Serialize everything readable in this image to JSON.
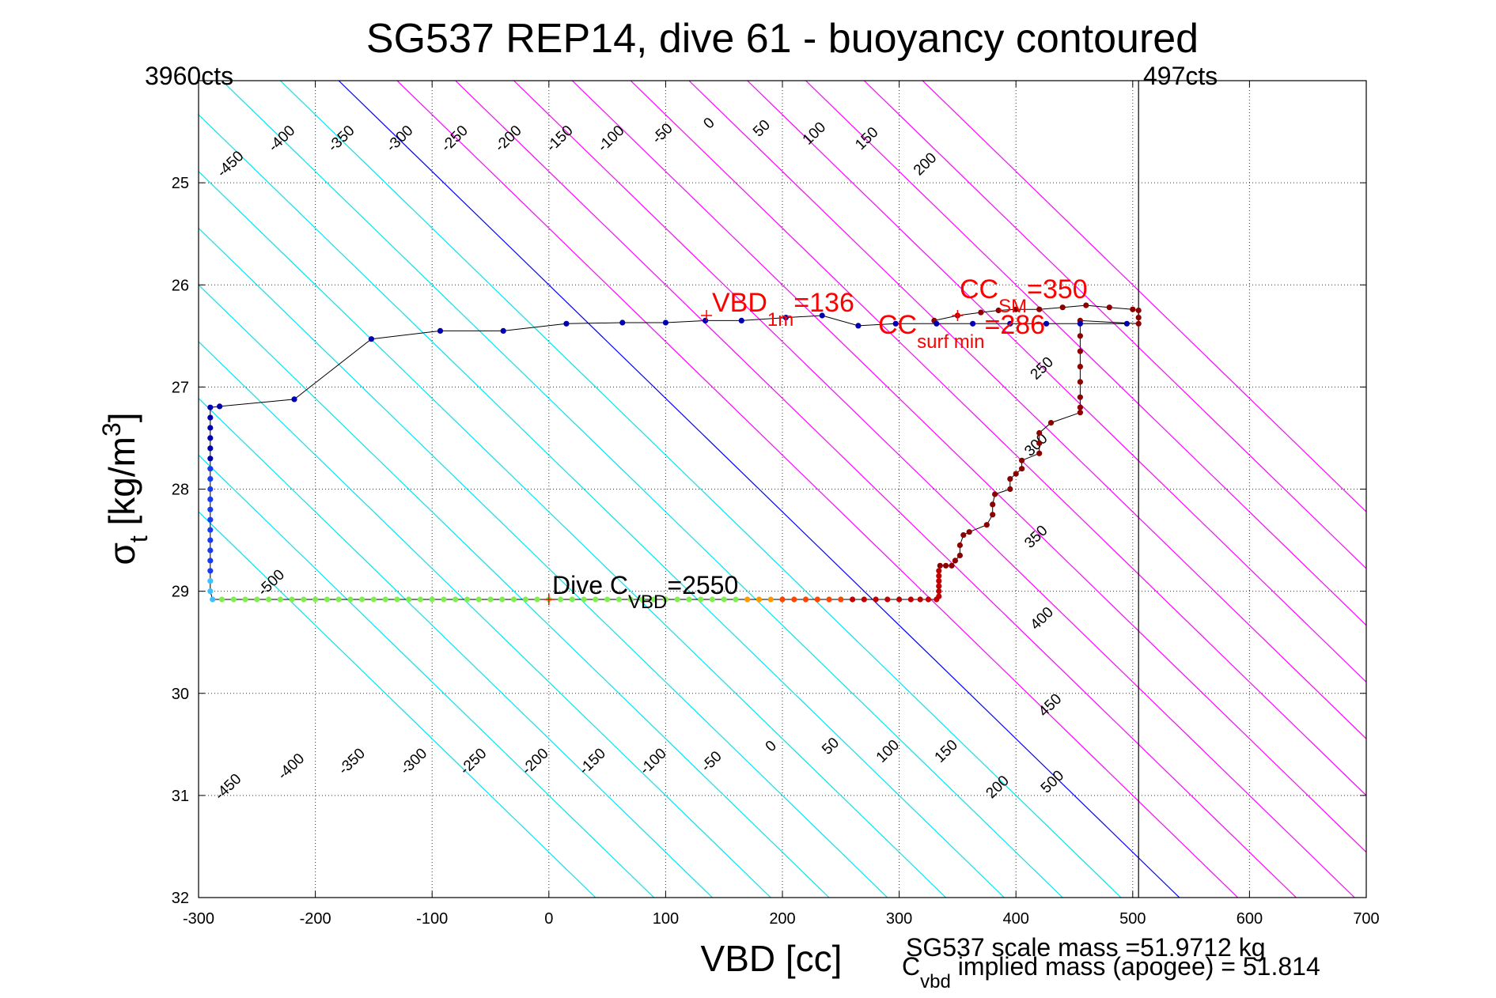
{
  "chart_data": {
    "type": "scatter",
    "title": "SG537 REP14, dive 61 - buoyancy contoured",
    "xlabel": "VBD [cc]",
    "ylabel": "σt [kg/m3]",
    "ylabel_parts": {
      "symbol": "σ",
      "sub": "t",
      "unit_open": " [kg/m",
      "unit_sup": "3",
      "unit_close": "]"
    },
    "xlim": [
      -300,
      700
    ],
    "ylim": [
      24,
      32
    ],
    "y_reversed": true,
    "grid": true,
    "x_ticks": [
      -300,
      -200,
      -100,
      0,
      100,
      200,
      300,
      400,
      500,
      600,
      700
    ],
    "y_ticks": [
      25,
      26,
      27,
      28,
      29,
      30,
      31,
      32
    ],
    "y_tick_labels": [
      "25",
      "26",
      "27",
      "28",
      "29",
      "30",
      "31",
      "32"
    ],
    "top_left_label": "3960cts",
    "top_right_label": "497cts",
    "vertical_line_vbd": 505,
    "contours": {
      "slope_cc_per_sigma": 90,
      "anchor_sigma": 26,
      "values": [
        -500,
        -450,
        -400,
        -350,
        -300,
        -250,
        -200,
        -150,
        -100,
        -50,
        0,
        50,
        100,
        150,
        200,
        250,
        300,
        350,
        400,
        450,
        500
      ],
      "colors": {
        "negative": "#00e5ee",
        "zero": "#0000ff",
        "positive": "#ff00ff"
      },
      "top_labels": [
        {
          "v": "-450",
          "x": -270,
          "y": 24.85
        },
        {
          "v": "-400",
          "x": -226,
          "y": 24.6
        },
        {
          "v": "-350",
          "x": -175,
          "y": 24.6
        },
        {
          "v": "-300",
          "x": -125,
          "y": 24.6
        },
        {
          "v": "-250",
          "x": -78,
          "y": 24.6
        },
        {
          "v": "-200",
          "x": -32,
          "y": 24.6
        },
        {
          "v": "-150",
          "x": 12,
          "y": 24.6
        },
        {
          "v": "-100",
          "x": 56,
          "y": 24.6
        },
        {
          "v": "-50",
          "x": 100,
          "y": 24.55
        },
        {
          "v": "0",
          "x": 140,
          "y": 24.45
        },
        {
          "v": "50",
          "x": 185,
          "y": 24.5
        },
        {
          "v": "100",
          "x": 230,
          "y": 24.55
        },
        {
          "v": "150",
          "x": 275,
          "y": 24.6
        },
        {
          "v": "200",
          "x": 325,
          "y": 24.85
        },
        {
          "v": "250",
          "x": 425,
          "y": 26.85
        },
        {
          "v": "300",
          "x": 420,
          "y": 27.6
        },
        {
          "v": "350",
          "x": 420,
          "y": 28.5
        },
        {
          "v": "400",
          "x": 425,
          "y": 29.3
        },
        {
          "v": "450",
          "x": 432,
          "y": 30.15
        },
        {
          "v": "500",
          "x": 434,
          "y": 30.9
        }
      ],
      "bottom_labels": [
        {
          "v": "-500",
          "x": -235,
          "y": 28.95
        },
        {
          "v": "-450",
          "x": -272,
          "y": 30.95
        },
        {
          "v": "-400",
          "x": -218,
          "y": 30.75
        },
        {
          "v": "-350",
          "x": -166,
          "y": 30.7
        },
        {
          "v": "-300",
          "x": -113,
          "y": 30.7
        },
        {
          "v": "-250",
          "x": -62,
          "y": 30.7
        },
        {
          "v": "-200",
          "x": -9,
          "y": 30.7
        },
        {
          "v": "-150",
          "x": 40,
          "y": 30.7
        },
        {
          "v": "-100",
          "x": 92,
          "y": 30.7
        },
        {
          "v": "-50",
          "x": 142,
          "y": 30.7
        },
        {
          "v": "0",
          "x": 193,
          "y": 30.55
        },
        {
          "v": "50",
          "x": 244,
          "y": 30.55
        },
        {
          "v": "100",
          "x": 293,
          "y": 30.6
        },
        {
          "v": "150",
          "x": 343,
          "y": 30.6
        },
        {
          "v": "200",
          "x": 387,
          "y": 30.95
        }
      ]
    },
    "series": [
      {
        "color_scale": "depth",
        "points": [
          [
            330,
            26.35
          ],
          [
            350,
            26.3
          ],
          [
            370,
            26.27
          ],
          [
            385,
            26.25
          ],
          [
            400,
            26.24
          ],
          [
            420,
            26.24
          ],
          [
            440,
            26.22
          ],
          [
            460,
            26.2
          ],
          [
            480,
            26.22
          ],
          [
            500,
            26.24
          ],
          [
            505,
            26.25
          ],
          [
            505,
            26.32
          ],
          [
            505,
            26.38
          ],
          [
            455,
            26.35
          ],
          [
            455,
            26.5
          ],
          [
            455,
            26.65
          ],
          [
            455,
            26.8
          ],
          [
            455,
            26.95
          ],
          [
            455,
            27.1
          ],
          [
            455,
            27.2
          ],
          [
            455,
            27.25
          ],
          [
            430,
            27.35
          ],
          [
            420,
            27.45
          ],
          [
            420,
            27.55
          ],
          [
            420,
            27.65
          ],
          [
            405,
            27.72
          ],
          [
            405,
            27.8
          ],
          [
            400,
            27.85
          ],
          [
            395,
            27.9
          ],
          [
            395,
            28.0
          ],
          [
            382,
            28.05
          ],
          [
            380,
            28.15
          ],
          [
            380,
            28.25
          ],
          [
            375,
            28.35
          ],
          [
            360,
            28.42
          ],
          [
            355,
            28.45
          ],
          [
            352,
            28.55
          ],
          [
            352,
            28.65
          ],
          [
            348,
            28.7
          ],
          [
            345,
            28.75
          ],
          [
            340,
            28.75
          ],
          [
            335,
            28.75
          ],
          [
            334,
            28.8
          ],
          [
            334,
            28.85
          ],
          [
            334,
            28.9
          ],
          [
            334,
            28.95
          ],
          [
            334,
            29.0
          ],
          [
            334,
            29.05
          ],
          [
            332,
            29.08
          ],
          [
            325,
            29.08
          ],
          [
            318,
            29.08
          ],
          [
            310,
            29.08
          ],
          [
            300,
            29.08
          ],
          [
            290,
            29.08
          ],
          [
            280,
            29.08
          ],
          [
            270,
            29.08
          ],
          [
            260,
            29.08
          ],
          [
            250,
            29.08
          ],
          [
            240,
            29.08
          ],
          [
            230,
            29.08
          ],
          [
            220,
            29.08
          ],
          [
            210,
            29.08
          ],
          [
            200,
            29.08
          ],
          [
            190,
            29.08
          ],
          [
            180,
            29.08
          ],
          [
            170,
            29.08
          ],
          [
            160,
            29.08
          ],
          [
            150,
            29.08
          ],
          [
            140,
            29.08
          ],
          [
            130,
            29.08
          ],
          [
            120,
            29.08
          ],
          [
            110,
            29.08
          ],
          [
            100,
            29.08
          ],
          [
            90,
            29.08
          ],
          [
            80,
            29.08
          ],
          [
            70,
            29.08
          ],
          [
            60,
            29.08
          ],
          [
            50,
            29.08
          ],
          [
            40,
            29.08
          ],
          [
            30,
            29.08
          ],
          [
            20,
            29.08
          ],
          [
            10,
            29.08
          ],
          [
            0,
            29.08
          ],
          [
            -10,
            29.08
          ],
          [
            -20,
            29.08
          ],
          [
            -30,
            29.08
          ],
          [
            -40,
            29.08
          ],
          [
            -50,
            29.08
          ],
          [
            -60,
            29.08
          ],
          [
            -70,
            29.08
          ],
          [
            -80,
            29.08
          ],
          [
            -90,
            29.08
          ],
          [
            -100,
            29.08
          ],
          [
            -110,
            29.08
          ],
          [
            -120,
            29.08
          ],
          [
            -130,
            29.08
          ],
          [
            -140,
            29.08
          ],
          [
            -150,
            29.08
          ],
          [
            -160,
            29.08
          ],
          [
            -170,
            29.08
          ],
          [
            -180,
            29.08
          ],
          [
            -190,
            29.08
          ],
          [
            -200,
            29.08
          ],
          [
            -210,
            29.08
          ],
          [
            -220,
            29.08
          ],
          [
            -230,
            29.08
          ],
          [
            -240,
            29.08
          ],
          [
            -250,
            29.08
          ],
          [
            -260,
            29.08
          ],
          [
            -270,
            29.08
          ],
          [
            -280,
            29.08
          ],
          [
            -288,
            29.08
          ],
          [
            -290,
            29.0
          ],
          [
            -290,
            28.9
          ],
          [
            -290,
            28.8
          ],
          [
            -290,
            28.7
          ],
          [
            -290,
            28.6
          ],
          [
            -290,
            28.5
          ],
          [
            -290,
            28.4
          ],
          [
            -290,
            28.3
          ],
          [
            -290,
            28.2
          ],
          [
            -290,
            28.1
          ],
          [
            -290,
            28.0
          ],
          [
            -290,
            27.9
          ],
          [
            -290,
            27.8
          ],
          [
            -290,
            27.7
          ],
          [
            -290,
            27.6
          ],
          [
            -290,
            27.5
          ],
          [
            -290,
            27.4
          ],
          [
            -290,
            27.3
          ],
          [
            -290,
            27.2
          ],
          [
            -282,
            27.19
          ],
          [
            -218,
            27.12
          ],
          [
            -152,
            26.53
          ],
          [
            -93,
            26.45
          ],
          [
            -39,
            26.45
          ],
          [
            15,
            26.38
          ],
          [
            63,
            26.37
          ],
          [
            100,
            26.37
          ],
          [
            134,
            26.35
          ],
          [
            165,
            26.35
          ],
          [
            203,
            26.32
          ],
          [
            234,
            26.3
          ],
          [
            265,
            26.4
          ],
          [
            297,
            26.38
          ],
          [
            332,
            26.38
          ],
          [
            363,
            26.38
          ],
          [
            395,
            26.38
          ],
          [
            426,
            26.38
          ],
          [
            455,
            26.38
          ],
          [
            495,
            26.38
          ]
        ]
      }
    ],
    "markers": [
      {
        "x": 135,
        "y": 26.3,
        "label": "VBD",
        "sub": "1m",
        "value": "=136",
        "color": "#ff0000"
      },
      {
        "x": 350,
        "y": 26.3,
        "label": "CC",
        "sub": "SM",
        "value": "=350",
        "color": "#ff0000"
      },
      {
        "x": 350,
        "y": 26.3,
        "label": "CC",
        "sub": "surf min",
        "value": "=286",
        "color": "#ff0000"
      },
      {
        "x": 0,
        "y": 29.08,
        "label": "Dive C",
        "sub": "VBD",
        "value": "=2550",
        "color": "#000000"
      }
    ],
    "footer_line1": "SG537 scale mass =51.9712 kg",
    "footer_line2_main": "C",
    "footer_line2_sub": "vbd",
    "footer_line2_rest": " implied mass (apogee) = 51.814"
  }
}
